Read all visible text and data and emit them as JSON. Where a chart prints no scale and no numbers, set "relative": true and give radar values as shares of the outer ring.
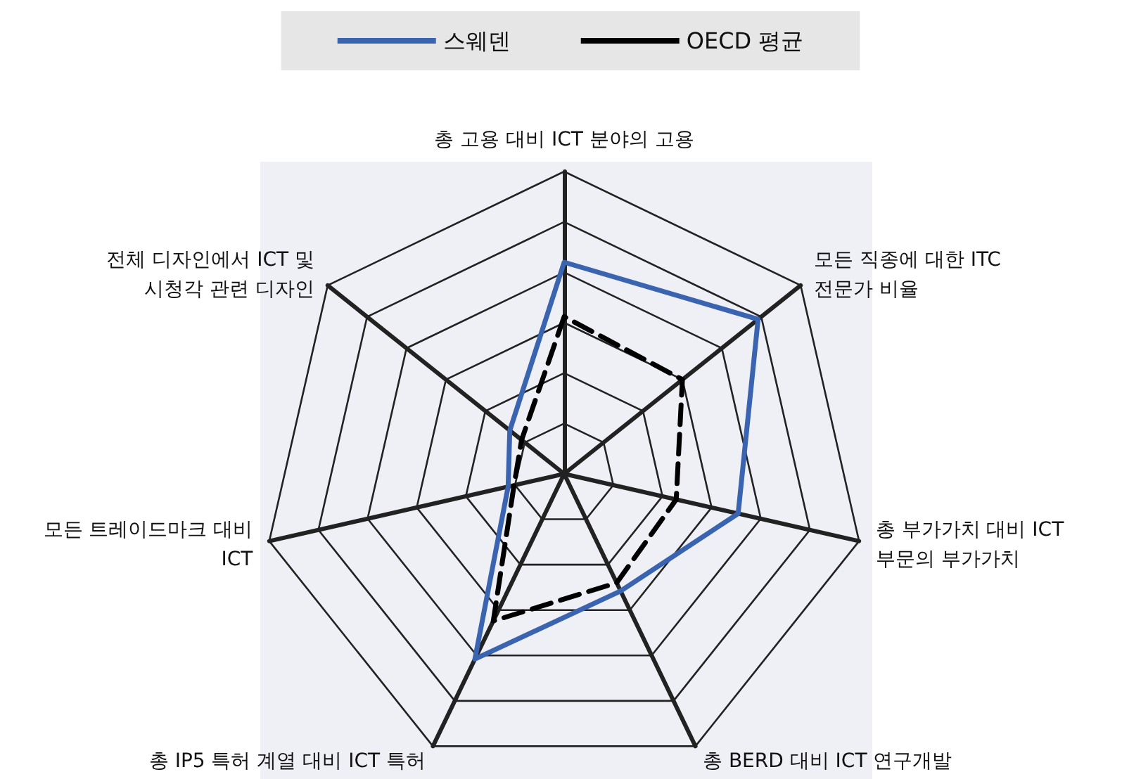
{
  "chart_data": {
    "type": "radar",
    "relative": true,
    "legend": "top",
    "categories": [
      "총 고용 대비 ICT 분야의 고용",
      "모든 직종에 대한 ITC 전문가 비율",
      "총 부가가치 대비 ICT 부문의 부가가치",
      "총 BERD 대비 ICT 연구개발",
      "총 IP5 특허 계열 대비 ICT 특허",
      "모든 트레이드마크 대비 ICT",
      "전체 디자인에서 ICT 및 시청각 관련 디자인"
    ],
    "series": [
      {
        "name": "스웨덴",
        "color": "#3a64b0",
        "line_style": "solid",
        "values": [
          0.7,
          0.82,
          0.59,
          0.43,
          0.68,
          0.19,
          0.23
        ]
      },
      {
        "name": "OECD 평균",
        "color": "#000000",
        "line_style": "dashed",
        "values": [
          0.52,
          0.5,
          0.38,
          0.4,
          0.54,
          0.17,
          0.18
        ]
      }
    ],
    "marker": "none"
  }
}
